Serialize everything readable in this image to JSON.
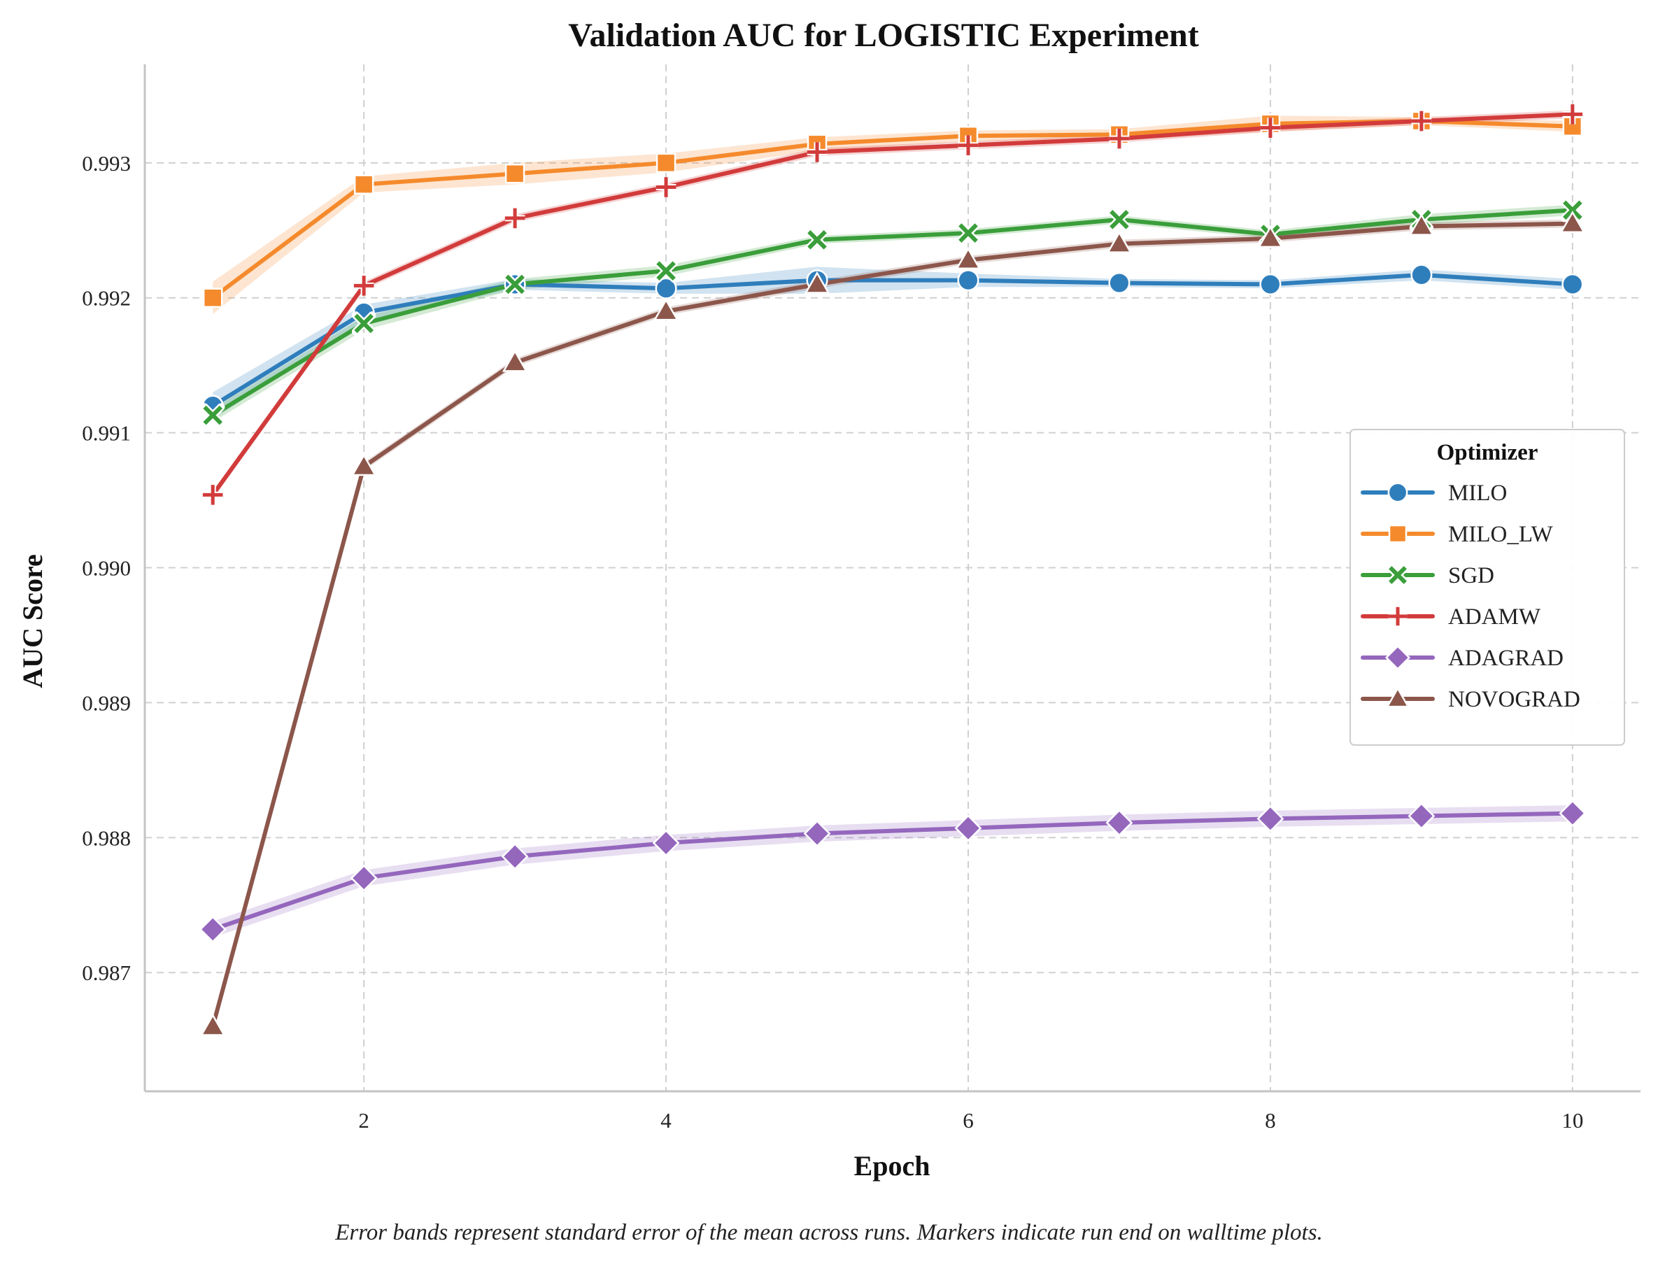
{
  "chart_data": {
    "type": "line",
    "title": "Validation AUC for LOGISTIC Experiment",
    "xlabel": "Epoch",
    "ylabel": "AUC Score",
    "xlim": [
      0.55,
      10.45
    ],
    "ylim": [
      0.98612,
      0.99373
    ],
    "xticks": [
      2,
      4,
      6,
      8,
      10
    ],
    "xtick_labels": [
      "2",
      "4",
      "6",
      "8",
      "10"
    ],
    "yticks": [
      0.987,
      0.988,
      0.989,
      0.99,
      0.991,
      0.992,
      0.993
    ],
    "ytick_labels": [
      "0.987",
      "0.988",
      "0.989",
      "0.990",
      "0.991",
      "0.992",
      "0.993"
    ],
    "grid": true,
    "legend": {
      "title": "Optimizer",
      "position": "center-right"
    },
    "caption": "Error bands represent standard error of the mean across runs. Markers indicate run end on walltime plots.",
    "x": [
      1,
      2,
      3,
      4,
      5,
      6,
      7,
      8,
      9,
      10
    ],
    "series": [
      {
        "name": "MILO",
        "color": "#2f7ebc",
        "marker": "circle",
        "values": [
          0.9912,
          0.99189,
          0.9921,
          0.99207,
          0.99213,
          0.99213,
          0.99211,
          0.9921,
          0.99217,
          0.9921
        ],
        "band": [
          0.0001,
          6e-05,
          4e-05,
          4e-05,
          0.0001,
          5e-05,
          3e-05,
          3e-05,
          4e-05,
          4e-05
        ]
      },
      {
        "name": "MILO_LW",
        "color": "#f58a2c",
        "marker": "square",
        "values": [
          0.992,
          0.99284,
          0.99292,
          0.993,
          0.99314,
          0.9932,
          0.99321,
          0.99329,
          0.99331,
          0.99327
        ],
        "band": [
          0.00012,
          6e-05,
          8e-05,
          7e-05,
          5e-05,
          4e-05,
          4e-05,
          6e-05,
          3e-05,
          4e-05
        ]
      },
      {
        "name": "SGD",
        "color": "#3a9e3a",
        "marker": "x",
        "values": [
          0.99113,
          0.99181,
          0.9921,
          0.9922,
          0.99243,
          0.99248,
          0.99258,
          0.99247,
          0.99258,
          0.99265
        ],
        "band": [
          5e-05,
          5e-05,
          4e-05,
          4e-05,
          3e-05,
          3e-05,
          3e-05,
          3e-05,
          4e-05,
          4e-05
        ]
      },
      {
        "name": "ADAMW",
        "color": "#d23b3b",
        "marker": "plus",
        "values": [
          0.99054,
          0.99209,
          0.99259,
          0.99282,
          0.99308,
          0.99313,
          0.99318,
          0.99326,
          0.99331,
          0.99336
        ],
        "band": [
          3e-05,
          3e-05,
          3e-05,
          3e-05,
          3e-05,
          3e-05,
          3e-05,
          3e-05,
          3e-05,
          3e-05
        ]
      },
      {
        "name": "ADAGRAD",
        "color": "#9467bd",
        "marker": "diamond",
        "values": [
          0.98732,
          0.9877,
          0.98786,
          0.98796,
          0.98803,
          0.98807,
          0.98811,
          0.98814,
          0.98816,
          0.98818
        ],
        "band": [
          6e-05,
          6e-05,
          6e-05,
          6e-05,
          6e-05,
          6e-05,
          6e-05,
          6e-05,
          6e-05,
          6e-05
        ]
      },
      {
        "name": "NOVOGRAD",
        "color": "#8c564b",
        "marker": "triangle",
        "values": [
          0.9866,
          0.99075,
          0.99152,
          0.9919,
          0.9921,
          0.99228,
          0.9924,
          0.99244,
          0.99253,
          0.99255
        ],
        "band": [
          6e-05,
          3e-05,
          3e-05,
          3e-05,
          3e-05,
          3e-05,
          3e-05,
          3e-05,
          3e-05,
          3e-05
        ]
      }
    ]
  }
}
